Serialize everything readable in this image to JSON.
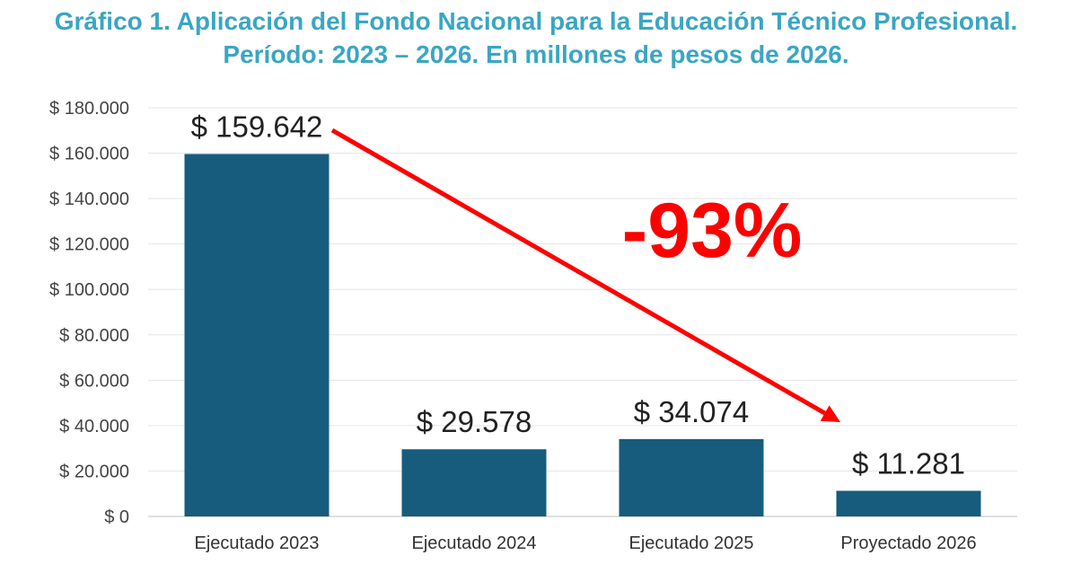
{
  "title_line1": "Gráfico 1. Aplicación del Fondo Nacional para la Educación Técnico Profesional.",
  "title_line2": "Período: 2023 – 2026. En millones de pesos de 2026.",
  "colors": {
    "bar": "#175c7d",
    "title": "#3aa6c2",
    "arrow": "#ff0000",
    "grid": "#e6e6e6"
  },
  "chart_data": {
    "type": "bar",
    "categories": [
      "Ejecutado 2023",
      "Ejecutado 2024",
      "Ejecutado 2025",
      "Proyectado 2026"
    ],
    "values": [
      159642,
      29578,
      34074,
      11281
    ],
    "data_labels": [
      "$ 159.642",
      "$ 29.578",
      "$ 34.074",
      "$ 11.281"
    ],
    "y_ticks": [
      0,
      20000,
      40000,
      60000,
      80000,
      100000,
      120000,
      140000,
      160000,
      180000
    ],
    "y_tick_labels": [
      "$ 0",
      "$ 20.000",
      "$ 40.000",
      "$ 60.000",
      "$ 80.000",
      "$ 100.000",
      "$ 120.000",
      "$ 140.000",
      "$ 160.000",
      "$ 180.000"
    ],
    "ylim": [
      0,
      180000
    ],
    "grid": true,
    "annotation": "-93%",
    "arrow": {
      "from_category": "Ejecutado 2023",
      "to_category": "Proyectado 2026"
    }
  }
}
